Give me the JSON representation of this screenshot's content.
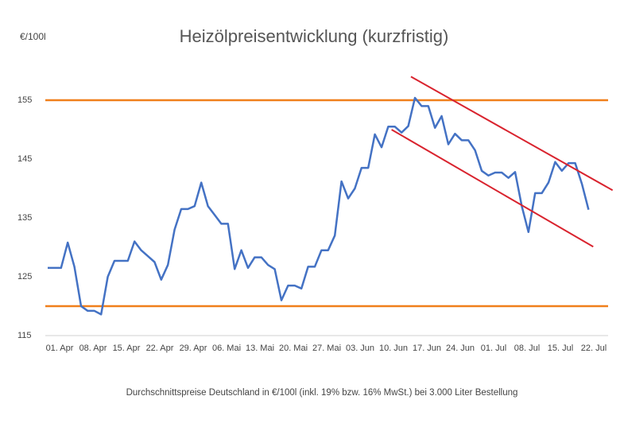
{
  "chart_data": {
    "type": "line",
    "title": "Heizölpreisentwicklung (kurzfristig)",
    "y_unit": "€/100l",
    "footnote": "Durchschnittspreise Deutschland in €/100l (inkl. 19% bzw. 16%  MwSt.) bei 3.000 Liter Bestellung",
    "categories": [
      "01. Apr",
      null,
      null,
      null,
      null,
      "08. Apr",
      null,
      null,
      null,
      null,
      "15. Apr",
      null,
      null,
      null,
      null,
      "22. Apr",
      null,
      null,
      null,
      null,
      "29. Apr",
      null,
      null,
      null,
      null,
      "06. Mai",
      null,
      null,
      null,
      null,
      "13. Mai",
      null,
      null,
      null,
      null,
      "20. Mai",
      null,
      null,
      null,
      null,
      "27. Mai",
      null,
      null,
      null,
      null,
      "03. Jun",
      null,
      null,
      null,
      null,
      "10. Jun",
      null,
      null,
      null,
      null,
      "17. Jun",
      null,
      null,
      null,
      null,
      "24. Jun",
      null,
      null,
      null,
      null,
      "01. Jul",
      null,
      null,
      null,
      null,
      "08. Jul",
      null,
      null,
      null,
      null,
      "15. Jul",
      null,
      null,
      null,
      null,
      "22. Jul",
      null
    ],
    "series": [
      {
        "name": "Heizölpreis",
        "color": "#4472c4",
        "values": [
          126.5,
          126.5,
          126.5,
          130.8,
          126.7,
          120,
          119.2,
          119.2,
          118.6,
          125,
          127.7,
          127.7,
          127.7,
          131,
          129.5,
          128.5,
          127.5,
          124.5,
          127,
          133,
          136.5,
          136.5,
          137,
          141,
          137,
          135.5,
          134,
          134,
          126.3,
          129.5,
          126.5,
          128.3,
          128.3,
          127,
          126.3,
          121,
          123.5,
          123.5,
          123,
          126.7,
          126.7,
          129.5,
          129.5,
          132,
          141.2,
          138.3,
          140,
          143.5,
          143.5,
          149.2,
          147,
          150.5,
          150.5,
          149.5,
          150.6,
          155.4,
          154,
          154,
          150.3,
          152.3,
          147.5,
          149.3,
          148.2,
          148.2,
          146.5,
          143,
          142.2,
          142.7,
          142.7,
          141.8,
          142.8,
          137,
          132.6,
          139.2,
          139.2,
          141,
          144.5,
          143,
          144.3,
          144.3,
          140.8,
          136.4
        ]
      }
    ],
    "hlines": [
      155,
      120
    ],
    "hline_color": "#f07f1b",
    "trendlines": [
      {
        "x": [
          54.4,
          84.6
        ],
        "values": [
          159,
          139.7
        ]
      },
      {
        "x": [
          51.5,
          81.7
        ],
        "values": [
          150,
          130.1
        ]
      }
    ],
    "trend_color": "#d9232e",
    "ylim": [
      115,
      160
    ],
    "yticks": [
      115,
      125,
      135,
      145,
      155
    ],
    "grid": false
  }
}
